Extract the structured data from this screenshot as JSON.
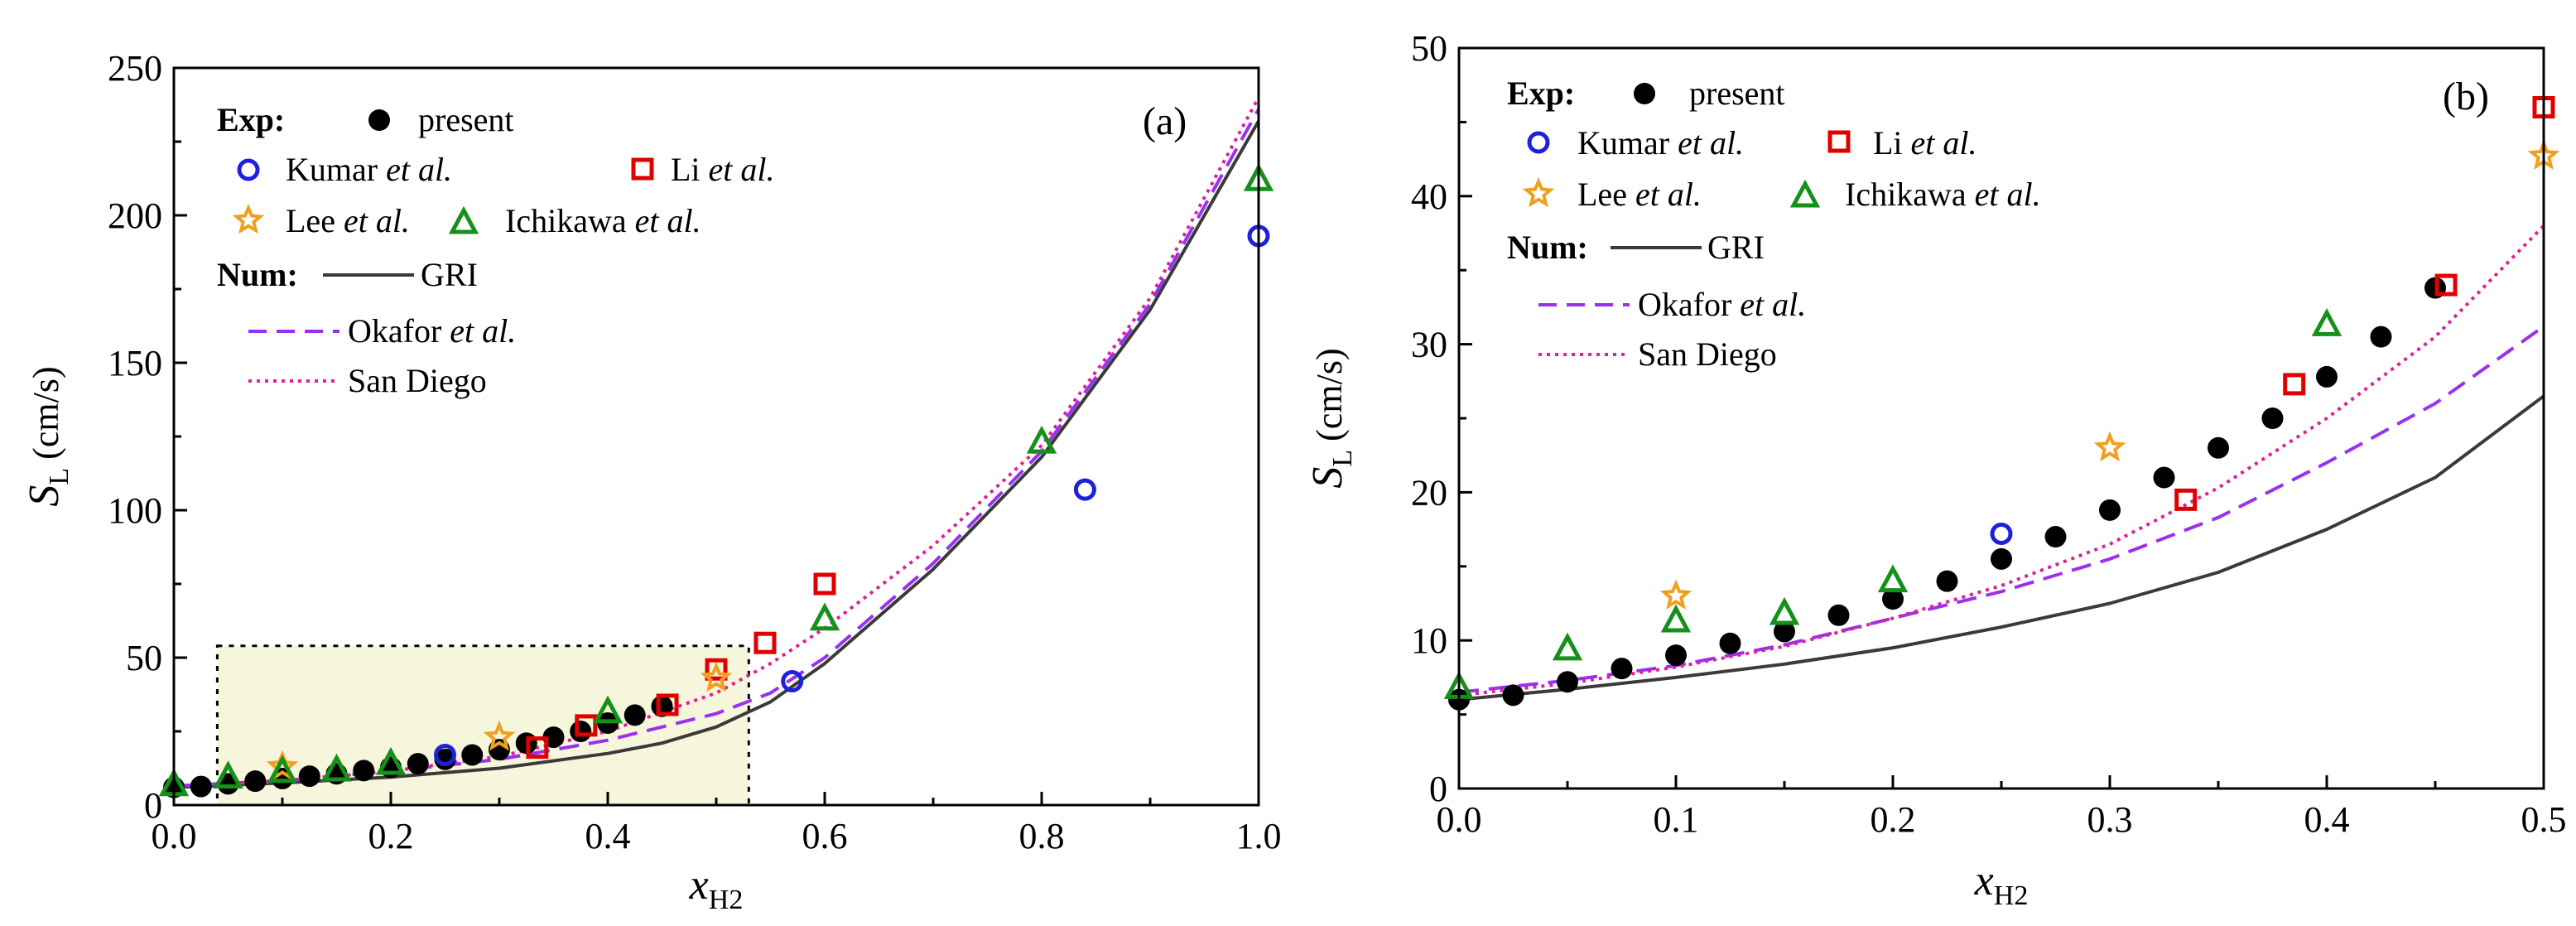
{
  "colors": {
    "present": "#000000",
    "kumar": "#1f1fe0",
    "li": "#e00000",
    "lee": "#f0a020",
    "ichikawa": "#15901a",
    "gri": "#3a3a3a",
    "okafor": "#9a30f0",
    "sandiego": "#e0209a",
    "inset": "#f6f6dc"
  },
  "legend": {
    "exp_label": "Exp:",
    "num_label": "Num:",
    "present": "present",
    "kumar": "Kumar",
    "li": "Li",
    "lee": "Lee",
    "ichikawa": "Ichikawa",
    "etal": "et al.",
    "gri": "GRI",
    "okafor": "Okafor",
    "sandiego": "San Diego"
  },
  "chart_data": [
    {
      "panel": "(a)",
      "type": "scatter",
      "xlabel": "x",
      "xlabel_sub": "H2",
      "ylabel": "S",
      "ylabel_sub": "L",
      "ylabel_unit": "(cm/s)",
      "xlim": [
        0,
        1.0
      ],
      "ylim": [
        0,
        250
      ],
      "xticks": [
        "0.0",
        "0.2",
        "0.4",
        "0.6",
        "0.8",
        "1.0"
      ],
      "yticks": [
        "0",
        "50",
        "100",
        "150",
        "200",
        "250"
      ],
      "inset_box": {
        "x": [
          0.04,
          0.53
        ],
        "y": [
          0,
          54
        ]
      },
      "series": [
        {
          "name": "present",
          "marker": "filled-circle",
          "x": [
            0.0,
            0.025,
            0.05,
            0.075,
            0.1,
            0.125,
            0.15,
            0.175,
            0.2,
            0.225,
            0.25,
            0.275,
            0.3,
            0.325,
            0.35,
            0.375,
            0.4,
            0.425,
            0.45
          ],
          "y": [
            6,
            6.3,
            7.2,
            8.1,
            9.0,
            9.8,
            10.6,
            11.7,
            12.8,
            14,
            15.5,
            17,
            18.8,
            21,
            23,
            25,
            27.8,
            30.5,
            33.5
          ]
        },
        {
          "name": "Kumar",
          "marker": "open-circle",
          "x": [
            0.25,
            0.57,
            0.84,
            1.0
          ],
          "y": [
            17,
            42,
            107,
            193
          ]
        },
        {
          "name": "Li",
          "marker": "open-square",
          "x": [
            0.335,
            0.38,
            0.455,
            0.5,
            0.545,
            0.6
          ],
          "y": [
            19.5,
            27,
            34,
            46,
            55,
            75
          ]
        },
        {
          "name": "Lee",
          "marker": "open-star",
          "x": [
            0.1,
            0.3,
            0.5
          ],
          "y": [
            13,
            23,
            43
          ]
        },
        {
          "name": "Ichikawa",
          "marker": "open-triangle",
          "x": [
            0.0,
            0.05,
            0.1,
            0.15,
            0.2,
            0.4,
            0.6,
            0.8,
            1.0
          ],
          "y": [
            6.8,
            9.4,
            11.3,
            11.8,
            14,
            31.5,
            63,
            123,
            212
          ]
        },
        {
          "name": "GRI",
          "line": "solid",
          "x": [
            0,
            0.1,
            0.2,
            0.3,
            0.4,
            0.45,
            0.5,
            0.55,
            0.6,
            0.7,
            0.8,
            0.9,
            1.0
          ],
          "y": [
            6,
            7.5,
            9.5,
            12.5,
            17.5,
            21,
            26.5,
            35,
            48,
            80,
            118,
            168,
            232
          ]
        },
        {
          "name": "Okafor",
          "line": "dashed",
          "x": [
            0,
            0.1,
            0.2,
            0.3,
            0.4,
            0.5,
            0.55,
            0.6,
            0.7,
            0.8,
            0.9,
            1.0
          ],
          "y": [
            6.5,
            8.3,
            11.5,
            15.5,
            22,
            31,
            38,
            50,
            82,
            120,
            170,
            236
          ]
        },
        {
          "name": "San Diego",
          "line": "dotted",
          "x": [
            0,
            0.1,
            0.2,
            0.3,
            0.4,
            0.5,
            0.55,
            0.6,
            0.7,
            0.8,
            0.9,
            1.0
          ],
          "y": [
            6.3,
            8.2,
            11.5,
            16.5,
            25,
            38,
            48,
            60,
            88,
            122,
            172,
            240
          ]
        }
      ]
    },
    {
      "panel": "(b)",
      "type": "scatter",
      "xlabel": "x",
      "xlabel_sub": "H2",
      "ylabel": "S",
      "ylabel_sub": "L",
      "ylabel_unit": "(cm/s)",
      "xlim": [
        0,
        0.5
      ],
      "ylim": [
        0,
        50
      ],
      "xticks": [
        "0.0",
        "0.1",
        "0.2",
        "0.3",
        "0.4",
        "0.5"
      ],
      "yticks": [
        "0",
        "10",
        "20",
        "30",
        "40",
        "50"
      ],
      "series": [
        {
          "name": "present",
          "marker": "filled-circle",
          "x": [
            0.0,
            0.025,
            0.05,
            0.075,
            0.1,
            0.125,
            0.15,
            0.175,
            0.2,
            0.225,
            0.25,
            0.275,
            0.3,
            0.325,
            0.35,
            0.375,
            0.4,
            0.425,
            0.45
          ],
          "y": [
            6,
            6.3,
            7.2,
            8.1,
            9.0,
            9.8,
            10.6,
            11.7,
            12.8,
            14,
            15.5,
            17,
            18.8,
            21,
            23,
            25,
            27.8,
            30.5,
            33.8
          ]
        },
        {
          "name": "Kumar",
          "marker": "open-circle",
          "x": [
            0.25
          ],
          "y": [
            17.2
          ]
        },
        {
          "name": "Li",
          "marker": "open-square",
          "x": [
            0.335,
            0.385,
            0.455,
            0.5
          ],
          "y": [
            19.5,
            27.3,
            34,
            46
          ]
        },
        {
          "name": "Lee",
          "marker": "open-star",
          "x": [
            0.1,
            0.3,
            0.5
          ],
          "y": [
            13,
            23,
            42.7
          ]
        },
        {
          "name": "Ichikawa",
          "marker": "open-triangle",
          "x": [
            0.0,
            0.05,
            0.1,
            0.15,
            0.2,
            0.4
          ],
          "y": [
            6.8,
            9.4,
            11.3,
            11.8,
            14,
            31.3
          ]
        },
        {
          "name": "GRI",
          "line": "solid",
          "x": [
            0,
            0.05,
            0.1,
            0.15,
            0.2,
            0.25,
            0.3,
            0.35,
            0.4,
            0.45,
            0.5
          ],
          "y": [
            6,
            6.7,
            7.5,
            8.4,
            9.5,
            10.9,
            12.5,
            14.6,
            17.5,
            21,
            26.5
          ]
        },
        {
          "name": "Okafor",
          "line": "dashed",
          "x": [
            0,
            0.05,
            0.1,
            0.15,
            0.2,
            0.25,
            0.3,
            0.35,
            0.4,
            0.45,
            0.5
          ],
          "y": [
            6.5,
            7.3,
            8.3,
            9.7,
            11.5,
            13.3,
            15.5,
            18.3,
            22,
            26,
            31.2
          ]
        },
        {
          "name": "San Diego",
          "line": "dotted",
          "x": [
            0,
            0.05,
            0.1,
            0.15,
            0.2,
            0.25,
            0.3,
            0.35,
            0.4,
            0.45,
            0.5
          ],
          "y": [
            6.3,
            7.1,
            8.2,
            9.6,
            11.5,
            13.7,
            16.5,
            20.3,
            25,
            30.5,
            38
          ]
        }
      ]
    }
  ]
}
